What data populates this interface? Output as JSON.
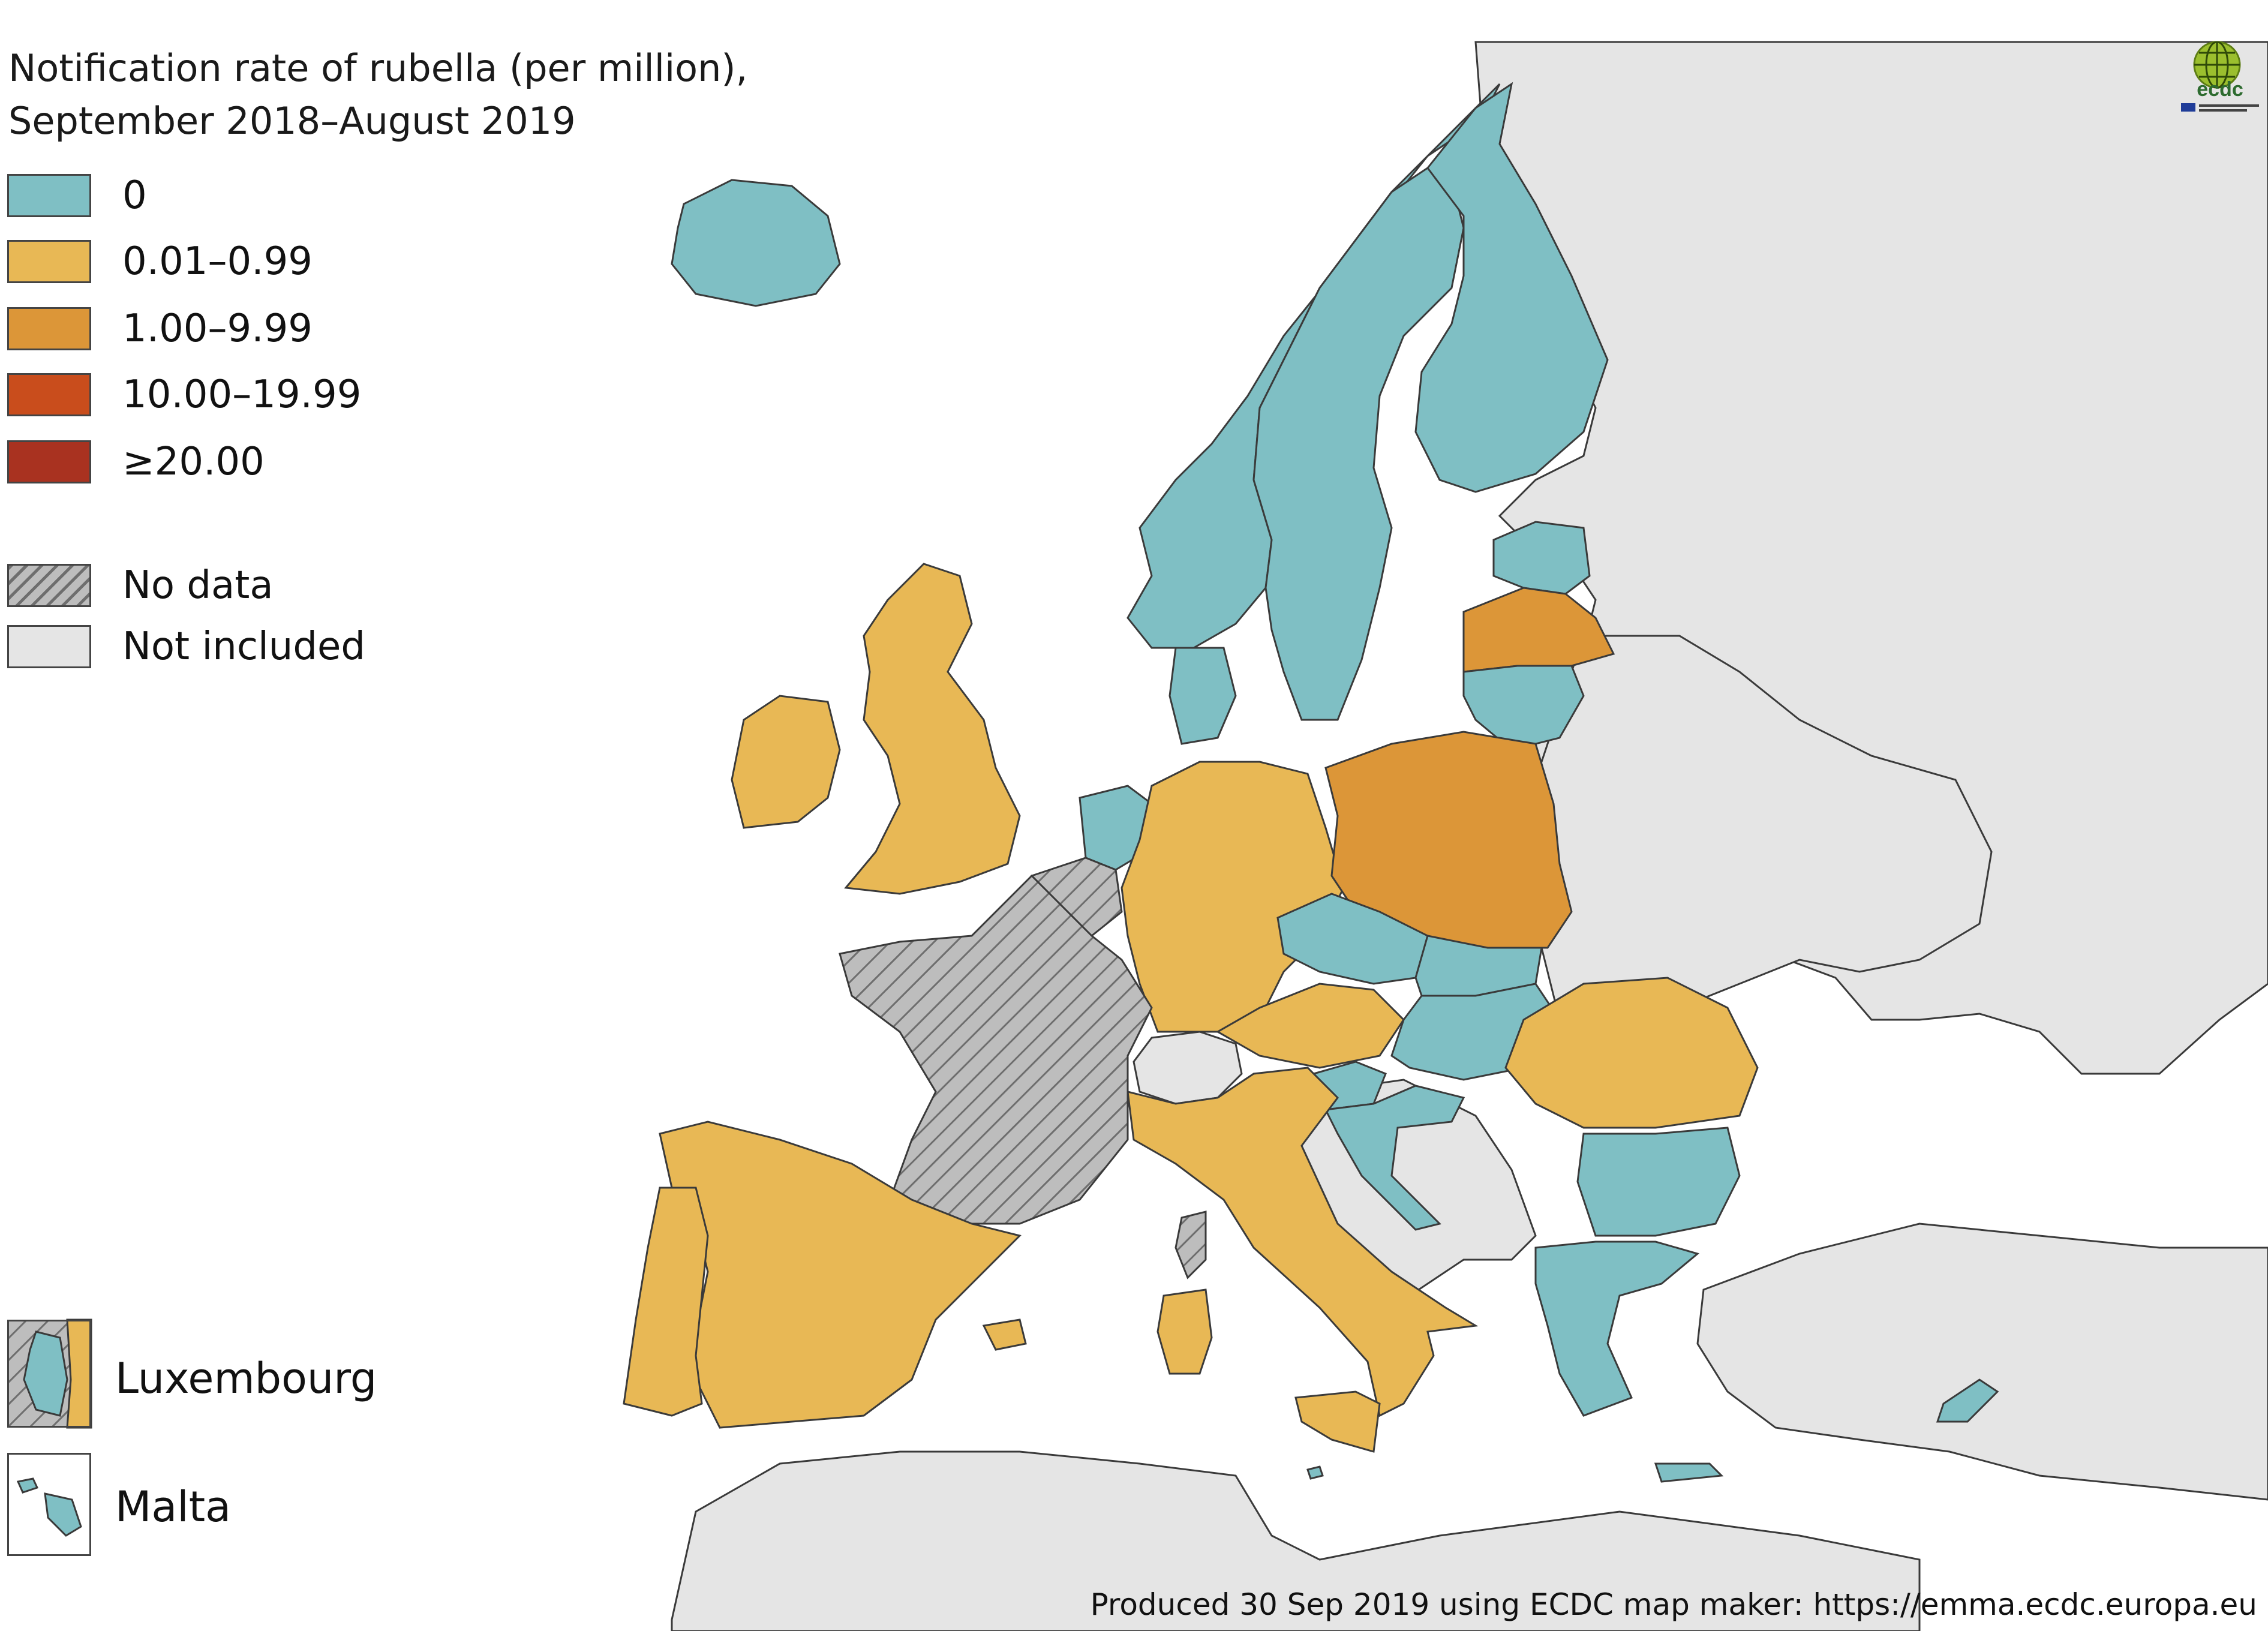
{
  "title_lines": [
    "Notification rate of rubella (per million),",
    "September 2018–August 2019"
  ],
  "colors": {
    "zero": "#7fbfc4",
    "low": "#e8b855",
    "mid": "#dc9638",
    "high": "#c94d1c",
    "very_high": "#a93220",
    "no_data": "#bdbdbd",
    "not_included": "#e5e5e5",
    "sea": "#ffffff",
    "border": "#3a3a3a"
  },
  "legend": [
    {
      "label": "0",
      "color_key": "zero"
    },
    {
      "label": "0.01–0.99",
      "color_key": "low"
    },
    {
      "label": "1.00–9.99",
      "color_key": "mid"
    },
    {
      "label": "10.00–19.99",
      "color_key": "high"
    },
    {
      "label": "≥20.00",
      "color_key": "very_high"
    },
    {
      "label": "No data",
      "color_key": "no_data",
      "hatched": true
    },
    {
      "label": "Not included",
      "color_key": "not_included"
    }
  ],
  "insets": {
    "luxembourg": "Luxembourg",
    "malta": "Malta"
  },
  "footer": "Produced 30 Sep 2019 using ECDC map maker: https://emma.ecdc.europa.eu",
  "logo": {
    "text": "ecdc",
    "icon": "ecdc-globe-icon"
  },
  "countries": {
    "Iceland": "zero",
    "Norway": "zero",
    "Sweden": "zero",
    "Finland": "zero",
    "Estonia": "zero",
    "Latvia": "mid",
    "Lithuania": "zero",
    "Denmark": "zero",
    "Ireland": "low",
    "United Kingdom": "low",
    "Netherlands": "zero",
    "Belgium": "no_data",
    "Luxembourg": "zero",
    "Germany": "low",
    "Poland": "mid",
    "Czechia": "zero",
    "Slovakia": "zero",
    "Austria": "low",
    "Hungary": "zero",
    "Slovenia": "zero",
    "Croatia": "zero",
    "Romania": "low",
    "Bulgaria": "zero",
    "Greece": "zero",
    "Cyprus": "zero",
    "Malta": "zero",
    "Italy": "low",
    "Spain": "low",
    "Portugal": "low",
    "France": "no_data"
  }
}
